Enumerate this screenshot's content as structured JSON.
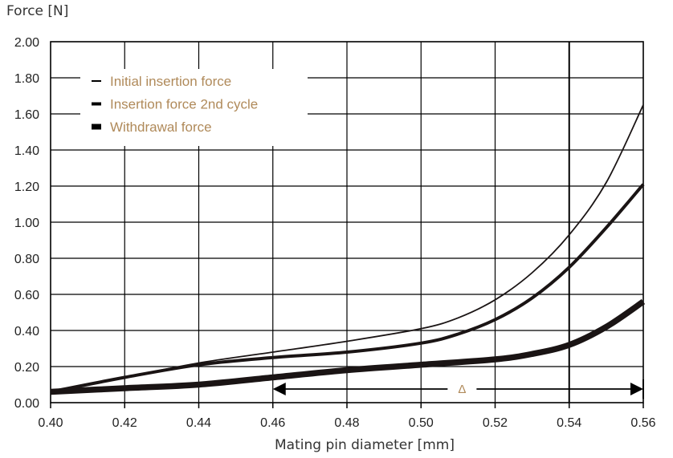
{
  "chart_data": {
    "type": "line",
    "ylabel": "Force [N]",
    "xlabel": "Mating pin diameter [mm]",
    "xlim": [
      0.4,
      0.56
    ],
    "ylim": [
      0.0,
      2.0
    ],
    "x_ticks": [
      "0.40",
      "0.42",
      "0.44",
      "0.46",
      "0.48",
      "0.50",
      "0.52",
      "0.54",
      "0.56"
    ],
    "y_ticks": [
      "0.00",
      "0.20",
      "0.40",
      "0.60",
      "0.80",
      "1.00",
      "1.20",
      "1.40",
      "1.60",
      "1.80",
      "2.00"
    ],
    "grid": true,
    "legend_position": "top-left",
    "legend_text_color": "#b08a5a",
    "series": [
      {
        "name": "Initial insertion force",
        "line_weight": "thin",
        "x": [
          0.4,
          0.42,
          0.44,
          0.46,
          0.48,
          0.5,
          0.51,
          0.52,
          0.53,
          0.54,
          0.55,
          0.56
        ],
        "y": [
          0.06,
          0.14,
          0.22,
          0.28,
          0.34,
          0.41,
          0.47,
          0.57,
          0.72,
          0.93,
          1.22,
          1.65
        ]
      },
      {
        "name": "Insertion force 2nd cycle",
        "line_weight": "medium",
        "x": [
          0.4,
          0.42,
          0.44,
          0.46,
          0.48,
          0.5,
          0.51,
          0.52,
          0.53,
          0.54,
          0.55,
          0.56
        ],
        "y": [
          0.06,
          0.14,
          0.21,
          0.25,
          0.28,
          0.33,
          0.38,
          0.46,
          0.58,
          0.75,
          0.97,
          1.21
        ]
      },
      {
        "name": "Withdrawal force",
        "line_weight": "thick",
        "x": [
          0.4,
          0.42,
          0.44,
          0.46,
          0.48,
          0.5,
          0.52,
          0.53,
          0.54,
          0.55,
          0.56
        ],
        "y": [
          0.06,
          0.08,
          0.1,
          0.14,
          0.18,
          0.21,
          0.24,
          0.27,
          0.32,
          0.42,
          0.56
        ]
      }
    ],
    "annotation": {
      "label": "Δ",
      "x_from": 0.46,
      "x_to": 0.56,
      "y": 0.08
    }
  }
}
